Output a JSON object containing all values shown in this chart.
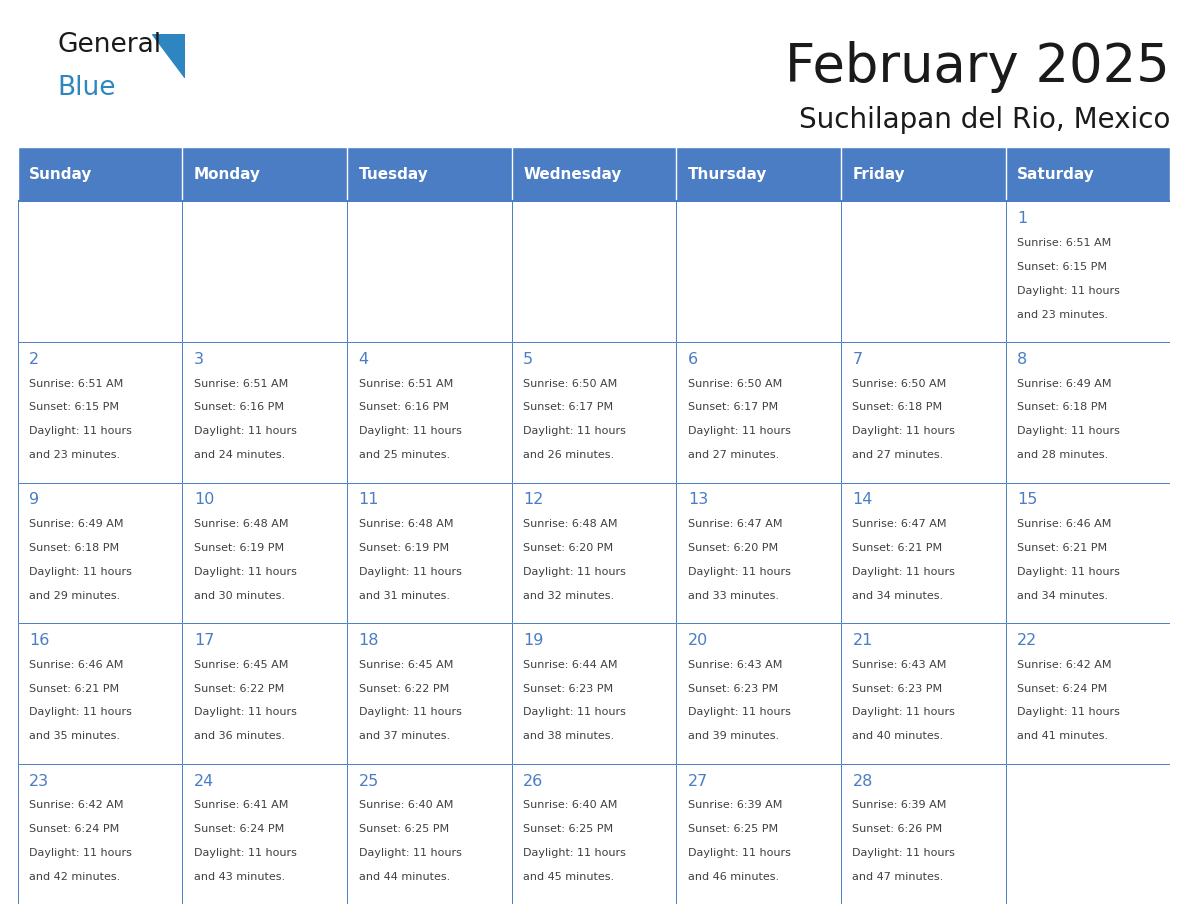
{
  "title": "February 2025",
  "subtitle": "Suchilapan del Rio, Mexico",
  "days_of_week": [
    "Sunday",
    "Monday",
    "Tuesday",
    "Wednesday",
    "Thursday",
    "Friday",
    "Saturday"
  ],
  "header_bg": "#4A7DC4",
  "header_text": "#FFFFFF",
  "cell_bg": "#FFFFFF",
  "cell_border": "#4A7DC4",
  "title_color": "#1a1a1a",
  "subtitle_color": "#1a1a1a",
  "text_color": "#404040",
  "day_number_color": "#4A7DC4",
  "logo_general_color": "#1a1a1a",
  "logo_blue_color": "#2E86C1",
  "logo_triangle_color": "#2E86C1",
  "calendar": [
    [
      {
        "day": null
      },
      {
        "day": null
      },
      {
        "day": null
      },
      {
        "day": null
      },
      {
        "day": null
      },
      {
        "day": null
      },
      {
        "day": 1,
        "sunrise": "6:51 AM",
        "sunset": "6:15 PM",
        "daylight": "11 hours and 23 minutes."
      }
    ],
    [
      {
        "day": 2,
        "sunrise": "6:51 AM",
        "sunset": "6:15 PM",
        "daylight": "11 hours and 23 minutes."
      },
      {
        "day": 3,
        "sunrise": "6:51 AM",
        "sunset": "6:16 PM",
        "daylight": "11 hours and 24 minutes."
      },
      {
        "day": 4,
        "sunrise": "6:51 AM",
        "sunset": "6:16 PM",
        "daylight": "11 hours and 25 minutes."
      },
      {
        "day": 5,
        "sunrise": "6:50 AM",
        "sunset": "6:17 PM",
        "daylight": "11 hours and 26 minutes."
      },
      {
        "day": 6,
        "sunrise": "6:50 AM",
        "sunset": "6:17 PM",
        "daylight": "11 hours and 27 minutes."
      },
      {
        "day": 7,
        "sunrise": "6:50 AM",
        "sunset": "6:18 PM",
        "daylight": "11 hours and 27 minutes."
      },
      {
        "day": 8,
        "sunrise": "6:49 AM",
        "sunset": "6:18 PM",
        "daylight": "11 hours and 28 minutes."
      }
    ],
    [
      {
        "day": 9,
        "sunrise": "6:49 AM",
        "sunset": "6:18 PM",
        "daylight": "11 hours and 29 minutes."
      },
      {
        "day": 10,
        "sunrise": "6:48 AM",
        "sunset": "6:19 PM",
        "daylight": "11 hours and 30 minutes."
      },
      {
        "day": 11,
        "sunrise": "6:48 AM",
        "sunset": "6:19 PM",
        "daylight": "11 hours and 31 minutes."
      },
      {
        "day": 12,
        "sunrise": "6:48 AM",
        "sunset": "6:20 PM",
        "daylight": "11 hours and 32 minutes."
      },
      {
        "day": 13,
        "sunrise": "6:47 AM",
        "sunset": "6:20 PM",
        "daylight": "11 hours and 33 minutes."
      },
      {
        "day": 14,
        "sunrise": "6:47 AM",
        "sunset": "6:21 PM",
        "daylight": "11 hours and 34 minutes."
      },
      {
        "day": 15,
        "sunrise": "6:46 AM",
        "sunset": "6:21 PM",
        "daylight": "11 hours and 34 minutes."
      }
    ],
    [
      {
        "day": 16,
        "sunrise": "6:46 AM",
        "sunset": "6:21 PM",
        "daylight": "11 hours and 35 minutes."
      },
      {
        "day": 17,
        "sunrise": "6:45 AM",
        "sunset": "6:22 PM",
        "daylight": "11 hours and 36 minutes."
      },
      {
        "day": 18,
        "sunrise": "6:45 AM",
        "sunset": "6:22 PM",
        "daylight": "11 hours and 37 minutes."
      },
      {
        "day": 19,
        "sunrise": "6:44 AM",
        "sunset": "6:23 PM",
        "daylight": "11 hours and 38 minutes."
      },
      {
        "day": 20,
        "sunrise": "6:43 AM",
        "sunset": "6:23 PM",
        "daylight": "11 hours and 39 minutes."
      },
      {
        "day": 21,
        "sunrise": "6:43 AM",
        "sunset": "6:23 PM",
        "daylight": "11 hours and 40 minutes."
      },
      {
        "day": 22,
        "sunrise": "6:42 AM",
        "sunset": "6:24 PM",
        "daylight": "11 hours and 41 minutes."
      }
    ],
    [
      {
        "day": 23,
        "sunrise": "6:42 AM",
        "sunset": "6:24 PM",
        "daylight": "11 hours and 42 minutes."
      },
      {
        "day": 24,
        "sunrise": "6:41 AM",
        "sunset": "6:24 PM",
        "daylight": "11 hours and 43 minutes."
      },
      {
        "day": 25,
        "sunrise": "6:40 AM",
        "sunset": "6:25 PM",
        "daylight": "11 hours and 44 minutes."
      },
      {
        "day": 26,
        "sunrise": "6:40 AM",
        "sunset": "6:25 PM",
        "daylight": "11 hours and 45 minutes."
      },
      {
        "day": 27,
        "sunrise": "6:39 AM",
        "sunset": "6:25 PM",
        "daylight": "11 hours and 46 minutes."
      },
      {
        "day": 28,
        "sunrise": "6:39 AM",
        "sunset": "6:26 PM",
        "daylight": "11 hours and 47 minutes."
      },
      {
        "day": null
      }
    ]
  ]
}
